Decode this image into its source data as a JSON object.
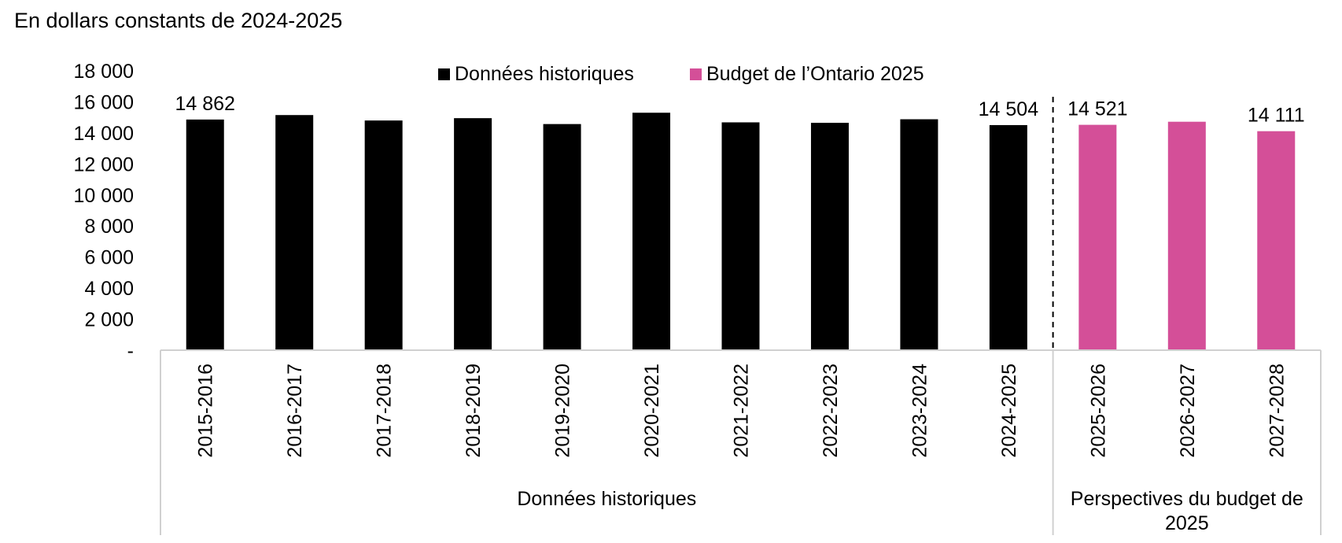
{
  "chart_data": {
    "type": "bar",
    "title": "En dollars constants de 2024-2025",
    "categories": [
      "2015-2016",
      "2016-2017",
      "2017-2018",
      "2018-2019",
      "2019-2020",
      "2020-2021",
      "2021-2022",
      "2022-2023",
      "2023-2024",
      "2024-2025",
      "2025-2026",
      "2026-2027",
      "2027-2028"
    ],
    "series": [
      {
        "name": "Données historiques",
        "color": "#000000",
        "values": [
          14862,
          15150,
          14800,
          14950,
          14570,
          15300,
          14680,
          14650,
          14880,
          14504,
          null,
          null,
          null
        ]
      },
      {
        "name": "Budget de l’Ontario 2025",
        "color": "#d44f98",
        "values": [
          null,
          null,
          null,
          null,
          null,
          null,
          null,
          null,
          null,
          null,
          14521,
          14720,
          14111
        ]
      }
    ],
    "data_labels": [
      {
        "category": "2015-2016",
        "text": "14 862"
      },
      {
        "category": "2024-2025",
        "text": "14 504"
      },
      {
        "category": "2025-2026",
        "text": "14 521"
      },
      {
        "category": "2027-2028",
        "text": "14 111"
      }
    ],
    "ylim": [
      0,
      18000
    ],
    "yticks": [
      {
        "value": 0,
        "label": "-"
      },
      {
        "value": 2000,
        "label": "2 000"
      },
      {
        "value": 4000,
        "label": "4 000"
      },
      {
        "value": 6000,
        "label": "6 000"
      },
      {
        "value": 8000,
        "label": "8 000"
      },
      {
        "value": 10000,
        "label": "10 000"
      },
      {
        "value": 12000,
        "label": "12 000"
      },
      {
        "value": 14000,
        "label": "14 000"
      },
      {
        "value": 16000,
        "label": "16 000"
      },
      {
        "value": 18000,
        "label": "18 000"
      }
    ],
    "groups": [
      {
        "label": "Données historiques",
        "count": 10
      },
      {
        "label_lines": [
          "Perspectives du budget de",
          "2025"
        ],
        "count": 3
      }
    ],
    "legend_position": "top-center",
    "grid": false
  }
}
